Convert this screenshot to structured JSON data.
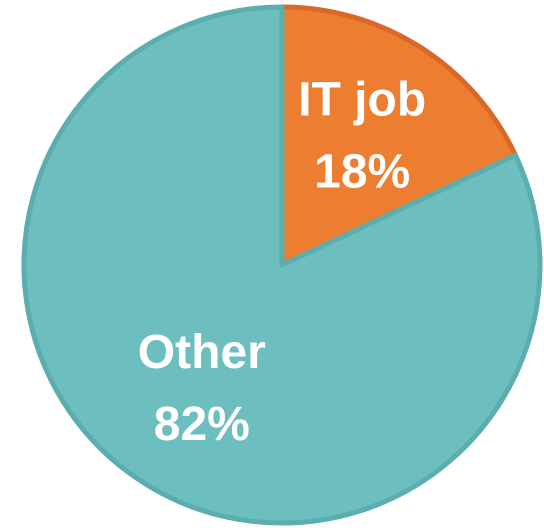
{
  "chart_data": {
    "type": "pie",
    "categories": [
      "IT job",
      "Other"
    ],
    "values": [
      18,
      82
    ],
    "value_labels": [
      "18%",
      "82%"
    ],
    "colors": [
      "#ed7d31",
      "#6dbfbf"
    ],
    "stroke_colors": [
      "#d9692a",
      "#5caeae"
    ]
  }
}
